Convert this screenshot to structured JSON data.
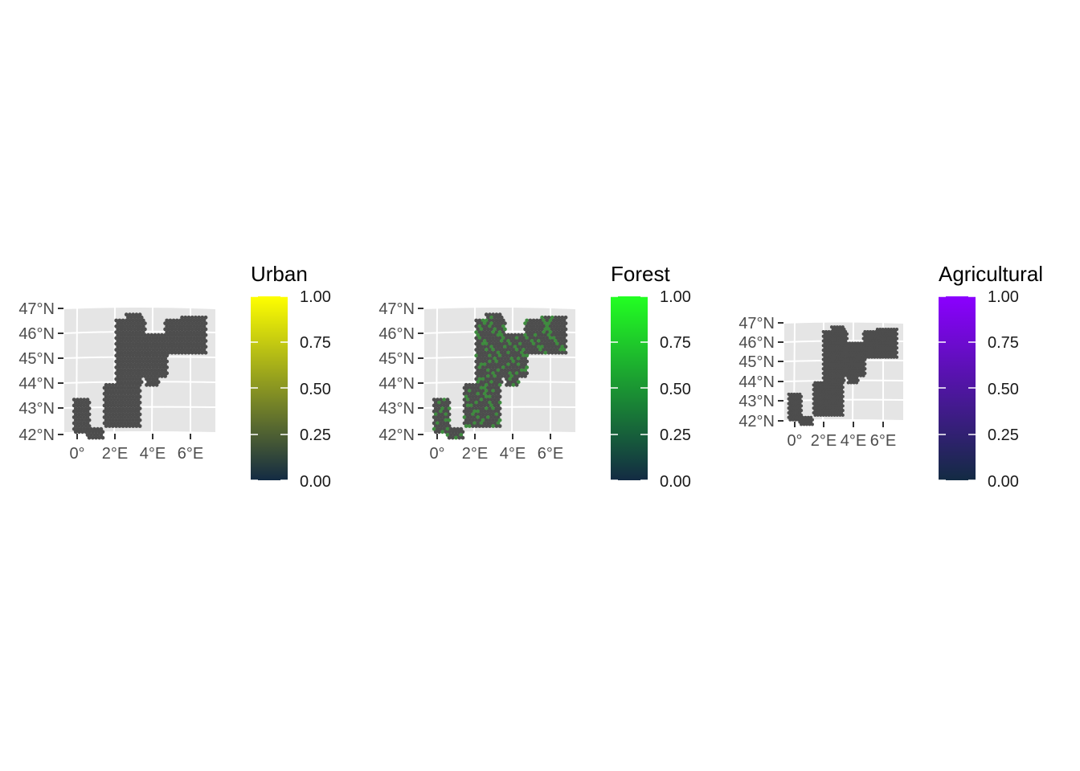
{
  "figure": {
    "background_color": "#ffffff",
    "panel_background_color": "#e5e5e5",
    "grid_color": "#ffffff",
    "na_fill_color": "#4d4d4d"
  },
  "panels": [
    {
      "id": "urban",
      "legend_title": "Urban",
      "low_color": "#132B43",
      "high_color": "#FFFF00",
      "lat_labels": [
        "47°N",
        "46°N",
        "45°N",
        "44°N",
        "43°N",
        "42°N"
      ],
      "lon_labels": [
        "0°",
        "2°E",
        "4°E",
        "6°E"
      ],
      "legend_labels": [
        "1.00",
        "0.75",
        "0.50",
        "0.25",
        "0.00"
      ],
      "legend_values": [
        1.0,
        0.75,
        0.5,
        0.25,
        0.0
      ],
      "cells_show_values": false
    },
    {
      "id": "forest",
      "legend_title": "Forest",
      "low_color": "#132B43",
      "high_color": "#22FF22",
      "lat_labels": [
        "47°N",
        "46°N",
        "45°N",
        "44°N",
        "43°N",
        "42°N"
      ],
      "lon_labels": [
        "0°",
        "2°E",
        "4°E",
        "6°E"
      ],
      "legend_labels": [
        "1.00",
        "0.75",
        "0.50",
        "0.25",
        "0.00"
      ],
      "legend_values": [
        1.0,
        0.75,
        0.5,
        0.25,
        0.0
      ],
      "cells_show_values": true
    },
    {
      "id": "agricultural",
      "legend_title": "Agricultural",
      "low_color": "#132B43",
      "high_color": "#8B00FF",
      "lat_labels": [
        "47°N",
        "46°N",
        "45°N",
        "44°N",
        "43°N",
        "42°N"
      ],
      "lon_labels": [
        "0°",
        "2°E",
        "4°E",
        "6°E"
      ],
      "legend_labels": [
        "1.00",
        "0.75",
        "0.50",
        "0.25",
        "0.00"
      ],
      "legend_values": [
        1.0,
        0.75,
        0.5,
        0.25,
        0.0
      ],
      "cells_show_values": false
    }
  ]
}
